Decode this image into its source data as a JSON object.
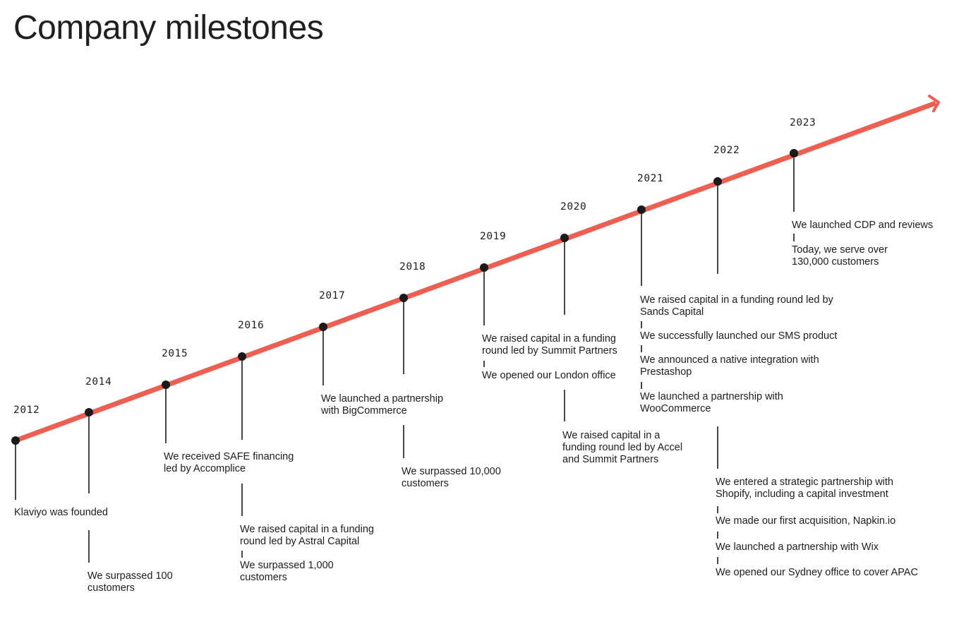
{
  "page": {
    "title": "Company milestones"
  },
  "colors": {
    "timeline_line": "#ec5f52",
    "marker": "#1a1a1a",
    "text": "#1d1d1d"
  },
  "timeline": {
    "years": [
      "2012",
      "2014",
      "2015",
      "2016",
      "2017",
      "2018",
      "2019",
      "2020",
      "2021",
      "2022",
      "2023"
    ],
    "events": [
      {
        "year": "2012",
        "text": "Klaviyo was founded"
      },
      {
        "year": "2014",
        "text": "We surpassed 100 customers"
      },
      {
        "year": "2015",
        "text": "We received SAFE financing led by Accomplice"
      },
      {
        "year": "2016",
        "text": "We raised capital in a funding round led by Astral Capital"
      },
      {
        "year": "2016",
        "text": "We surpassed 1,000 customers"
      },
      {
        "year": "2017",
        "text": "We launched a partnership with BigCommerce"
      },
      {
        "year": "2018",
        "text": "We surpassed 10,000 customers"
      },
      {
        "year": "2019",
        "text": "We raised capital in a funding round led by Summit Partners"
      },
      {
        "year": "2019",
        "text": "We opened our London office"
      },
      {
        "year": "2020",
        "text": "We raised capital in a funding round led by Accel and Summit Partners"
      },
      {
        "year": "2021",
        "text": "We raised capital in a funding round led by Sands Capital"
      },
      {
        "year": "2021",
        "text": "We successfully launched our SMS product"
      },
      {
        "year": "2021",
        "text": "We announced a native integration with Prestashop"
      },
      {
        "year": "2021",
        "text": "We launched a partnership with WooCommerce"
      },
      {
        "year": "2022",
        "text": "We entered a strategic partnership with Shopify, including a capital investment"
      },
      {
        "year": "2022",
        "text": "We made our first acquisition, Napkin.io"
      },
      {
        "year": "2022",
        "text": "We launched a partnership with Wix"
      },
      {
        "year": "2022",
        "text": "We opened our Sydney office to cover APAC"
      },
      {
        "year": "2023",
        "text": "We launched CDP and reviews"
      },
      {
        "year": "2023",
        "text": "Today, we serve over 130,000 customers"
      }
    ]
  }
}
